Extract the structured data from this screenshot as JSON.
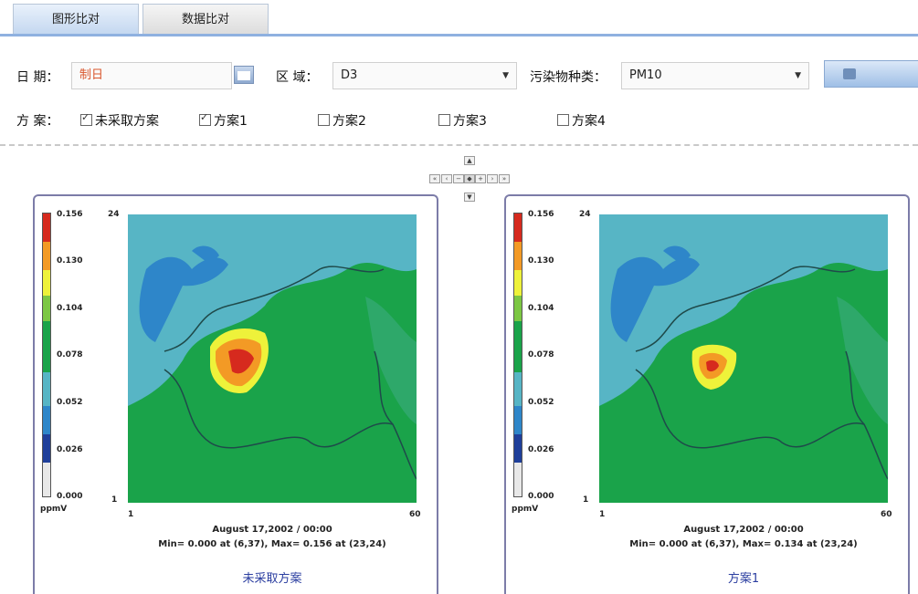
{
  "tabs": [
    "图形比对",
    "数据比对"
  ],
  "form": {
    "date_label": "日 期：",
    "date_value": "制日",
    "region_label": "区 域：",
    "region_value": "D3",
    "pollutant_label": "污染物种类：",
    "pollutant_value": "PM10",
    "scheme_label": "方 案："
  },
  "schemes": [
    {
      "label": "未采取方案",
      "checked": true
    },
    {
      "label": "方案1",
      "checked": true
    },
    {
      "label": "方案2",
      "checked": false
    },
    {
      "label": "方案3",
      "checked": false
    },
    {
      "label": "方案4",
      "checked": false
    }
  ],
  "colors": {
    "accent": "#8fb1e0",
    "scale": [
      "#e8e8e8",
      "#1f3f9a",
      "#2e86c9",
      "#57b5c5",
      "#1aa34a",
      "#7cc743",
      "#eef23a",
      "#f39a25",
      "#d62a1e"
    ],
    "panel_title": "#2b3ea0"
  },
  "panels": [
    {
      "title": "未采取方案",
      "scale_ticks": [
        "0.156",
        "0.130",
        "0.104",
        "0.078",
        "0.052",
        "0.026",
        "0.000"
      ],
      "unit": "ppmV",
      "axis_y_top": "24",
      "axis_y_bottom": "1",
      "axis_x_left": "1",
      "axis_x_right": "60",
      "time": "August 17,2002 / 00:00",
      "minmax": "Min=   0.000 at (6,37), Max=   0.156 at (23,24)"
    },
    {
      "title": "方案1",
      "scale_ticks": [
        "0.156",
        "0.130",
        "0.104",
        "0.078",
        "0.052",
        "0.026",
        "0.000"
      ],
      "unit": "ppmV",
      "axis_y_top": "24",
      "axis_y_bottom": "1",
      "axis_x_left": "1",
      "axis_x_right": "60",
      "time": "August 17,2002 / 00:00",
      "minmax": "Min=   0.000 at (6,37), Max=   0.134 at (23,24)"
    }
  ]
}
